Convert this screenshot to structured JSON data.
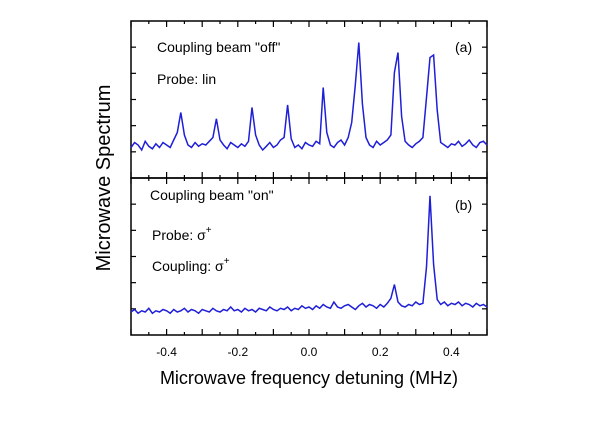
{
  "chart_data": [
    {
      "panel": "(a)",
      "type": "line",
      "annotations": [
        "Coupling beam \"off\"",
        "Probe: lin"
      ],
      "xlim": [
        -0.5,
        0.5
      ],
      "ylim": [
        0,
        1
      ],
      "color": "#1f1fd8",
      "x": [
        -0.5,
        -0.49,
        -0.48,
        -0.47,
        -0.46,
        -0.45,
        -0.44,
        -0.43,
        -0.42,
        -0.41,
        -0.4,
        -0.39,
        -0.38,
        -0.37,
        -0.36,
        -0.35,
        -0.34,
        -0.33,
        -0.32,
        -0.31,
        -0.3,
        -0.29,
        -0.28,
        -0.27,
        -0.26,
        -0.25,
        -0.24,
        -0.23,
        -0.22,
        -0.21,
        -0.2,
        -0.19,
        -0.18,
        -0.17,
        -0.16,
        -0.15,
        -0.14,
        -0.13,
        -0.12,
        -0.11,
        -0.1,
        -0.09,
        -0.08,
        -0.07,
        -0.06,
        -0.05,
        -0.04,
        -0.03,
        -0.02,
        -0.01,
        0.0,
        0.01,
        0.02,
        0.03,
        0.04,
        0.05,
        0.06,
        0.07,
        0.08,
        0.09,
        0.1,
        0.11,
        0.12,
        0.13,
        0.14,
        0.15,
        0.16,
        0.17,
        0.18,
        0.19,
        0.2,
        0.21,
        0.22,
        0.23,
        0.24,
        0.25,
        0.26,
        0.27,
        0.28,
        0.29,
        0.3,
        0.31,
        0.32,
        0.33,
        0.34,
        0.35,
        0.36,
        0.37,
        0.38,
        0.39,
        0.4,
        0.41,
        0.42,
        0.43,
        0.44,
        0.45,
        0.46,
        0.47,
        0.48,
        0.49,
        0.5
      ],
      "y": [
        0.1,
        0.14,
        0.12,
        0.08,
        0.15,
        0.11,
        0.09,
        0.13,
        0.1,
        0.14,
        0.12,
        0.1,
        0.16,
        0.22,
        0.38,
        0.2,
        0.12,
        0.1,
        0.14,
        0.11,
        0.13,
        0.12,
        0.15,
        0.18,
        0.33,
        0.16,
        0.12,
        0.09,
        0.14,
        0.12,
        0.1,
        0.13,
        0.11,
        0.15,
        0.42,
        0.2,
        0.12,
        0.08,
        0.11,
        0.14,
        0.1,
        0.12,
        0.16,
        0.18,
        0.44,
        0.17,
        0.1,
        0.12,
        0.09,
        0.14,
        0.12,
        0.11,
        0.15,
        0.13,
        0.58,
        0.22,
        0.12,
        0.1,
        0.14,
        0.16,
        0.12,
        0.18,
        0.3,
        0.6,
        0.94,
        0.45,
        0.18,
        0.12,
        0.1,
        0.15,
        0.12,
        0.14,
        0.16,
        0.2,
        0.7,
        0.86,
        0.35,
        0.15,
        0.12,
        0.1,
        0.13,
        0.15,
        0.18,
        0.5,
        0.82,
        0.84,
        0.4,
        0.14,
        0.12,
        0.1,
        0.13,
        0.12,
        0.15,
        0.11,
        0.13,
        0.16,
        0.12,
        0.1,
        0.14,
        0.15,
        0.12
      ]
    },
    {
      "panel": "(b)",
      "type": "line",
      "annotations": [
        "Coupling beam \"on\"",
        "Probe: σ",
        "Coupling: σ"
      ],
      "annotation_superscripts": [
        "+",
        "+"
      ],
      "xlim": [
        -0.5,
        0.5
      ],
      "ylim": [
        0,
        1
      ],
      "color": "#1f1fd8",
      "x": [
        -0.5,
        -0.49,
        -0.48,
        -0.47,
        -0.46,
        -0.45,
        -0.44,
        -0.43,
        -0.42,
        -0.41,
        -0.4,
        -0.39,
        -0.38,
        -0.37,
        -0.36,
        -0.35,
        -0.34,
        -0.33,
        -0.32,
        -0.31,
        -0.3,
        -0.29,
        -0.28,
        -0.27,
        -0.26,
        -0.25,
        -0.24,
        -0.23,
        -0.22,
        -0.21,
        -0.2,
        -0.19,
        -0.18,
        -0.17,
        -0.16,
        -0.15,
        -0.14,
        -0.13,
        -0.12,
        -0.11,
        -0.1,
        -0.09,
        -0.08,
        -0.07,
        -0.06,
        -0.05,
        -0.04,
        -0.03,
        -0.02,
        -0.01,
        0.0,
        0.01,
        0.02,
        0.03,
        0.04,
        0.05,
        0.06,
        0.07,
        0.08,
        0.09,
        0.1,
        0.11,
        0.12,
        0.13,
        0.14,
        0.15,
        0.16,
        0.17,
        0.18,
        0.19,
        0.2,
        0.21,
        0.22,
        0.23,
        0.24,
        0.25,
        0.26,
        0.27,
        0.28,
        0.29,
        0.3,
        0.31,
        0.32,
        0.33,
        0.34,
        0.35,
        0.36,
        0.37,
        0.38,
        0.39,
        0.4,
        0.41,
        0.42,
        0.43,
        0.44,
        0.45,
        0.46,
        0.47,
        0.48,
        0.49,
        0.5
      ],
      "y": [
        0.04,
        0.06,
        0.03,
        0.05,
        0.04,
        0.07,
        0.03,
        0.05,
        0.04,
        0.06,
        0.05,
        0.03,
        0.06,
        0.04,
        0.05,
        0.07,
        0.04,
        0.06,
        0.05,
        0.03,
        0.06,
        0.05,
        0.04,
        0.07,
        0.05,
        0.04,
        0.06,
        0.05,
        0.08,
        0.05,
        0.06,
        0.04,
        0.07,
        0.05,
        0.06,
        0.04,
        0.07,
        0.06,
        0.05,
        0.08,
        0.06,
        0.05,
        0.07,
        0.06,
        0.08,
        0.05,
        0.07,
        0.06,
        0.09,
        0.07,
        0.08,
        0.06,
        0.09,
        0.07,
        0.1,
        0.08,
        0.07,
        0.12,
        0.08,
        0.07,
        0.09,
        0.1,
        0.08,
        0.06,
        0.09,
        0.11,
        0.08,
        0.1,
        0.09,
        0.07,
        0.1,
        0.08,
        0.11,
        0.15,
        0.26,
        0.12,
        0.09,
        0.08,
        0.1,
        0.09,
        0.12,
        0.1,
        0.11,
        0.4,
        0.97,
        0.42,
        0.14,
        0.1,
        0.12,
        0.09,
        0.11,
        0.1,
        0.12,
        0.09,
        0.11,
        0.1,
        0.08,
        0.11,
        0.09,
        0.1,
        0.08
      ]
    }
  ],
  "axes": {
    "xlabel": "Microwave frequency detuning (MHz)",
    "ylabel": "Microwave Spectrum",
    "xticks": [
      -0.4,
      -0.2,
      0.0,
      0.2,
      0.4
    ],
    "xtick_labels": [
      "-0.4",
      "-0.2",
      "0.0",
      "0.2",
      "0.4"
    ],
    "grid": false
  }
}
